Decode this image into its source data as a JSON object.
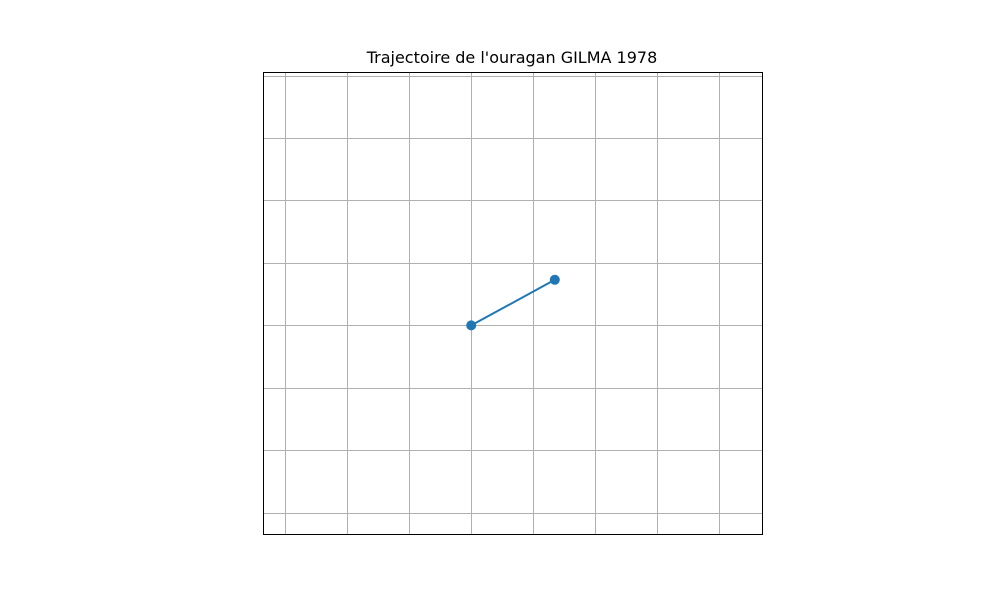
{
  "chart_data": {
    "type": "line",
    "title": "Trajectoire de l'ouragan GILMA 1978",
    "xlabel": "",
    "ylabel": "",
    "grid": true,
    "series": [
      {
        "color": "#1f77b4",
        "x": [
          0,
          1.35
        ],
        "y": [
          0,
          0.73
        ]
      }
    ],
    "xlim": [
      -3.35,
      4.7
    ],
    "ylim": [
      -3.35,
      4.05
    ],
    "xgrid": [
      -3,
      -2,
      -1,
      0,
      1,
      2,
      3,
      4
    ],
    "ygrid": [
      -3,
      -2,
      -1,
      0,
      1,
      2,
      3,
      4
    ]
  }
}
